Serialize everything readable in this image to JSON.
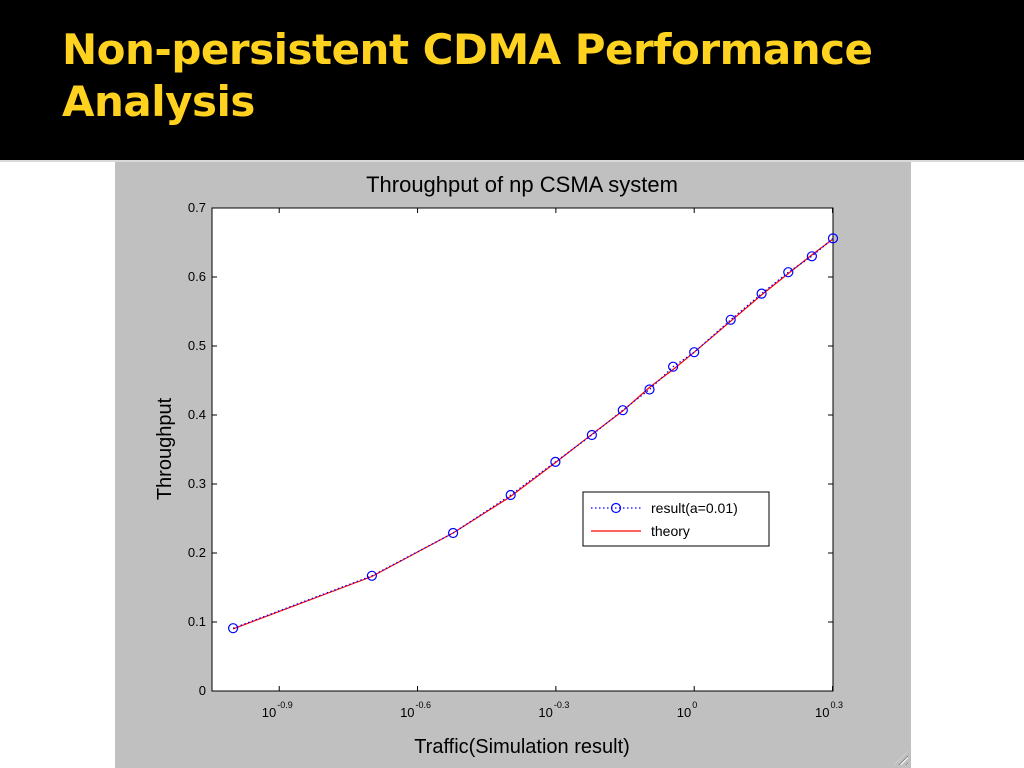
{
  "slide": {
    "title": "Non-persistent CDMA Performance Analysis",
    "title_color": "#FFD21F",
    "background": "#000000"
  },
  "chart_data": {
    "type": "line",
    "title": "Throughput of np CSMA system",
    "xlabel": "Traffic(Simulation result)",
    "ylabel": "Throughput",
    "xscale": "log",
    "xlim": [
      0.09,
      2.0
    ],
    "ylim": [
      0,
      0.7
    ],
    "x_ticks": [
      {
        "value": 0.1259,
        "base": "10",
        "exp": "-0.9"
      },
      {
        "value": 0.2512,
        "base": "10",
        "exp": "-0.6"
      },
      {
        "value": 0.5012,
        "base": "10",
        "exp": "-0.3"
      },
      {
        "value": 1.0,
        "base": "10",
        "exp": "0"
      },
      {
        "value": 1.9953,
        "base": "10",
        "exp": "0.3"
      }
    ],
    "y_ticks": [
      "0",
      "0.1",
      "0.2",
      "0.3",
      "0.4",
      "0.5",
      "0.6",
      "0.7"
    ],
    "grid": false,
    "legend_position": "center-right",
    "series": [
      {
        "name": "result(a=0.01)",
        "color": "#0000FF",
        "style": "dotted-circle",
        "x": [
          0.1,
          0.2,
          0.3,
          0.4,
          0.5,
          0.6,
          0.7,
          0.8,
          0.9,
          1.0,
          1.2,
          1.4,
          1.6,
          1.8,
          2.0
        ],
        "y": [
          0.091,
          0.167,
          0.229,
          0.284,
          0.332,
          0.371,
          0.407,
          0.437,
          0.47,
          0.491,
          0.538,
          0.576,
          0.607,
          0.63,
          0.656
        ]
      },
      {
        "name": "theory",
        "color": "#FF0000",
        "style": "solid",
        "x": [
          0.1,
          0.2,
          0.3,
          0.4,
          0.5,
          0.6,
          0.7,
          0.8,
          0.9,
          1.0,
          1.2,
          1.4,
          1.6,
          1.8,
          2.0
        ],
        "y": [
          0.09,
          0.166,
          0.229,
          0.282,
          0.331,
          0.372,
          0.406,
          0.44,
          0.466,
          0.491,
          0.536,
          0.574,
          0.605,
          0.632,
          0.655
        ]
      }
    ]
  }
}
